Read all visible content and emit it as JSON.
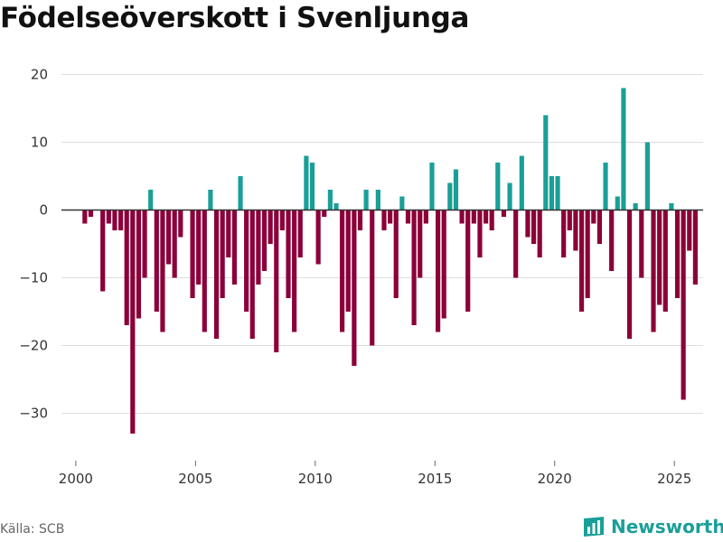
{
  "title": "Födelseöverskott i Svenljunga",
  "source": "Källa: SCB",
  "brand": "Newsworthy",
  "colors": {
    "positive": "#1a9f98",
    "negative": "#8c0039",
    "grid": "#dddddd",
    "zero": "#333333",
    "brand": "#1a9f98"
  },
  "chart_data": {
    "type": "bar",
    "title": "Födelseöverskott i Svenljunga",
    "xlabel": "",
    "ylabel": "",
    "ylim": [
      -37,
      23
    ],
    "xlim": [
      1999.4,
      2026.2
    ],
    "yticks": [
      20,
      10,
      0,
      -10,
      -20,
      -30
    ],
    "ytick_labels": [
      "20",
      "10",
      "0",
      "−10",
      "−20",
      "−30"
    ],
    "xticks": [
      2000,
      2005,
      2010,
      2015,
      2020,
      2025
    ],
    "xtick_labels": [
      "2000",
      "2005",
      "2010",
      "2015",
      "2020",
      "2025"
    ],
    "bar_unit": "quarter",
    "start": 2000.0,
    "values": [
      0,
      -2,
      -1,
      0,
      -12,
      -2,
      -3,
      -3,
      -17,
      -33,
      -16,
      -10,
      3,
      -15,
      -18,
      -8,
      -10,
      -4,
      0,
      -13,
      -11,
      -18,
      3,
      -19,
      -13,
      -7,
      -11,
      5,
      -15,
      -19,
      -11,
      -9,
      -5,
      -21,
      -3,
      -13,
      -18,
      -7,
      8,
      7,
      -8,
      -1,
      3,
      1,
      -18,
      -15,
      -23,
      -3,
      3,
      -20,
      3,
      -3,
      -2,
      -13,
      2,
      -2,
      -17,
      -10,
      -2,
      7,
      -18,
      -16,
      4,
      6,
      -2,
      -15,
      -2,
      -7,
      -2,
      -3,
      7,
      -1,
      4,
      -10,
      8,
      -4,
      -5,
      -7,
      14,
      5,
      5,
      -7,
      -3,
      -6,
      -15,
      -13,
      -2,
      -5,
      7,
      -9,
      2,
      18,
      -19,
      1,
      -10,
      10,
      -18,
      -14,
      -15,
      1,
      -13,
      -28,
      -6,
      -11
    ]
  }
}
